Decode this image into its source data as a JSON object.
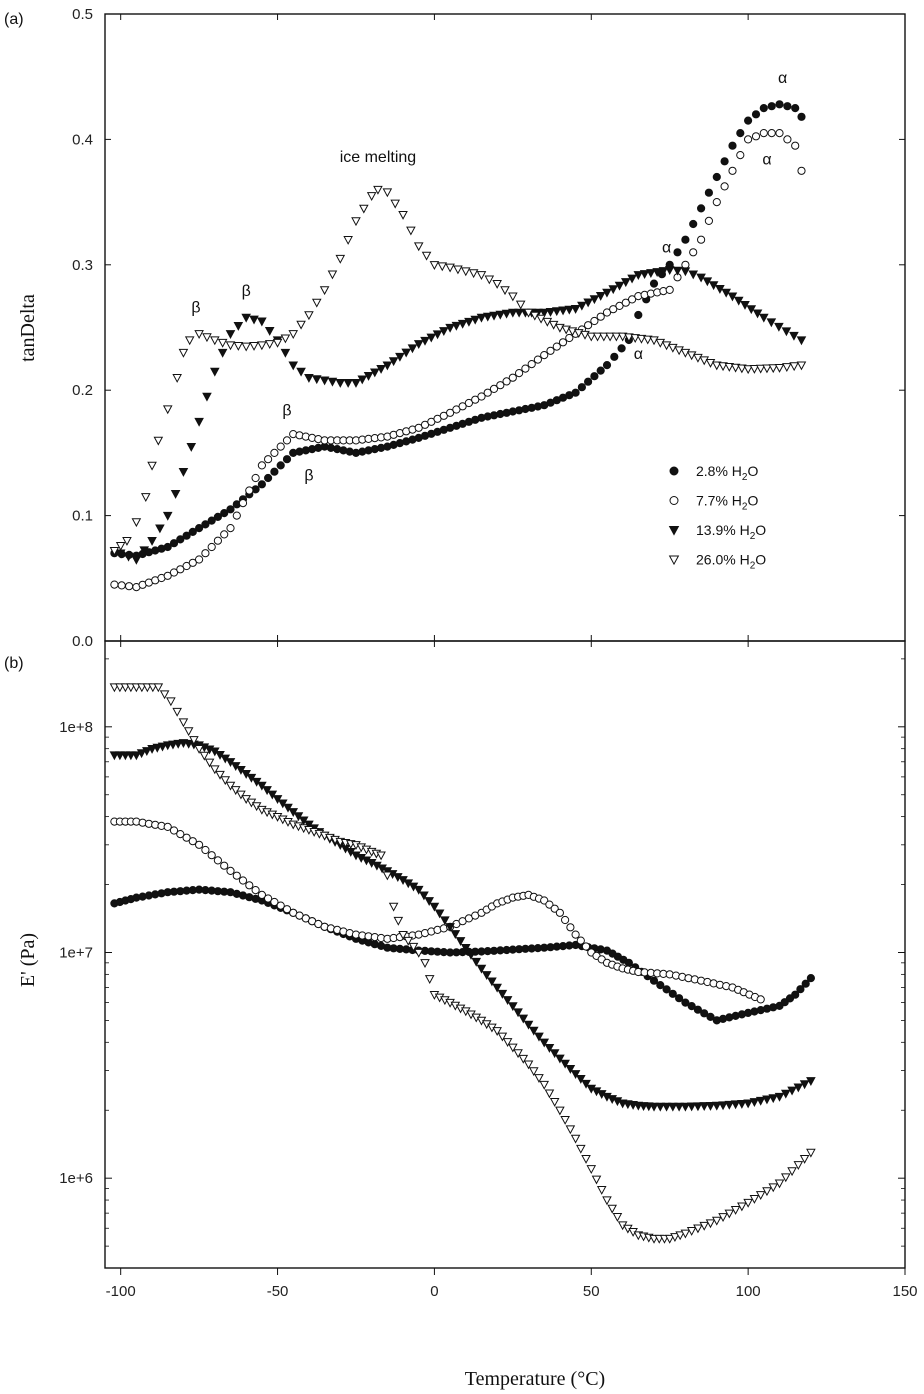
{
  "panel_labels": [
    "(a)",
    "(b)"
  ],
  "legend": [
    {
      "marker": "filled-circle",
      "label": "2.8% H",
      "sub": "2",
      "suffix": "O"
    },
    {
      "marker": "open-circle",
      "label": "7.7% H",
      "sub": "2",
      "suffix": "O"
    },
    {
      "marker": "filled-triangle-down",
      "label": "13.9% H",
      "sub": "2",
      "suffix": "O"
    },
    {
      "marker": "open-triangle-down",
      "label": "26.0% H",
      "sub": "2",
      "suffix": "O"
    }
  ],
  "annotations_a": [
    {
      "text": "ice melting",
      "x": -18,
      "y": 0.382
    },
    {
      "text": "β",
      "x": -76,
      "y": 0.262
    },
    {
      "text": "β",
      "x": -60,
      "y": 0.275
    },
    {
      "text": "β",
      "x": -47,
      "y": 0.18
    },
    {
      "text": "β",
      "x": -40,
      "y": 0.128
    },
    {
      "text": "α",
      "x": 74,
      "y": 0.31
    },
    {
      "text": "α",
      "x": 65,
      "y": 0.225
    },
    {
      "text": "α",
      "x": 111,
      "y": 0.445
    },
    {
      "text": "α",
      "x": 106,
      "y": 0.38
    }
  ],
  "chart_data": [
    {
      "type": "scatter",
      "panel": "(a)",
      "ylabel": "tanDelta",
      "xlim": [
        -105,
        150
      ],
      "ylim": [
        0.0,
        0.5
      ],
      "xticks": [
        -100,
        -50,
        0,
        50,
        100,
        150
      ],
      "yticks": [
        "0.0",
        "0.1",
        "0.2",
        "0.3",
        "0.4",
        "0.5"
      ],
      "series": [
        {
          "name": "2.8% H2O",
          "marker": "filled-circle",
          "x": [
            -102,
            -95,
            -85,
            -75,
            -65,
            -55,
            -45,
            -35,
            -25,
            -15,
            -5,
            5,
            15,
            25,
            35,
            45,
            55,
            62,
            65,
            70,
            75,
            80,
            85,
            90,
            95,
            100,
            105,
            110,
            115,
            117
          ],
          "y": [
            0.07,
            0.068,
            0.075,
            0.09,
            0.105,
            0.125,
            0.15,
            0.155,
            0.15,
            0.155,
            0.162,
            0.17,
            0.178,
            0.183,
            0.188,
            0.198,
            0.22,
            0.24,
            0.26,
            0.285,
            0.3,
            0.32,
            0.345,
            0.37,
            0.395,
            0.415,
            0.425,
            0.428,
            0.425,
            0.418
          ]
        },
        {
          "name": "7.7% H2O",
          "marker": "open-circle",
          "x": [
            -102,
            -95,
            -85,
            -75,
            -65,
            -55,
            -45,
            -35,
            -25,
            -15,
            -5,
            5,
            15,
            25,
            35,
            45,
            55,
            65,
            75,
            80,
            85,
            90,
            95,
            100,
            105,
            110,
            115,
            117
          ],
          "y": [
            0.045,
            0.043,
            0.052,
            0.065,
            0.09,
            0.14,
            0.165,
            0.16,
            0.16,
            0.163,
            0.17,
            0.182,
            0.195,
            0.21,
            0.228,
            0.245,
            0.262,
            0.275,
            0.28,
            0.3,
            0.32,
            0.35,
            0.375,
            0.4,
            0.405,
            0.405,
            0.395,
            0.375
          ]
        },
        {
          "name": "13.9% H2O",
          "marker": "filled-triangle-down",
          "x": [
            -100,
            -95,
            -90,
            -85,
            -80,
            -75,
            -70,
            -65,
            -60,
            -55,
            -50,
            -45,
            -40,
            -35,
            -30,
            -25,
            -15,
            -5,
            5,
            15,
            25,
            35,
            45,
            55,
            65,
            75,
            80,
            85,
            95,
            105,
            117
          ],
          "y": [
            0.07,
            0.065,
            0.08,
            0.1,
            0.135,
            0.175,
            0.215,
            0.245,
            0.258,
            0.255,
            0.24,
            0.22,
            0.21,
            0.208,
            0.206,
            0.206,
            0.22,
            0.237,
            0.25,
            0.258,
            0.262,
            0.262,
            0.265,
            0.278,
            0.292,
            0.296,
            0.295,
            0.29,
            0.275,
            0.258,
            0.24
          ]
        },
        {
          "name": "26.0% H2O",
          "marker": "open-triangle-down",
          "x": [
            -102,
            -98,
            -95,
            -92,
            -90,
            -88,
            -85,
            -82,
            -80,
            -78,
            -75,
            -70,
            -65,
            -60,
            -55,
            -50,
            -45,
            -40,
            -35,
            -30,
            -25,
            -20,
            -18,
            -15,
            -10,
            -5,
            0,
            5,
            10,
            15,
            20,
            25,
            30,
            40,
            50,
            60,
            70,
            80,
            90,
            100,
            110,
            117
          ],
          "y": [
            0.072,
            0.08,
            0.095,
            0.115,
            0.14,
            0.16,
            0.185,
            0.21,
            0.23,
            0.24,
            0.245,
            0.24,
            0.236,
            0.235,
            0.236,
            0.238,
            0.245,
            0.26,
            0.28,
            0.305,
            0.335,
            0.355,
            0.36,
            0.358,
            0.34,
            0.315,
            0.3,
            0.298,
            0.295,
            0.292,
            0.285,
            0.275,
            0.262,
            0.25,
            0.243,
            0.243,
            0.24,
            0.23,
            0.22,
            0.217,
            0.218,
            0.22
          ]
        }
      ]
    },
    {
      "type": "scatter",
      "panel": "(b)",
      "ylabel": "E' (Pa)",
      "xlabel": "Temperature (°C)",
      "yscale": "log",
      "xlim": [
        -105,
        150
      ],
      "ylim": [
        400000,
        240000000
      ],
      "xticks": [
        -100,
        -50,
        0,
        50,
        100,
        150
      ],
      "yticks": [
        {
          "value": 100000000,
          "label": "1e+8"
        },
        {
          "value": 10000000,
          "label": "1e+7"
        },
        {
          "value": 1000000,
          "label": "1e+6"
        }
      ],
      "series": [
        {
          "name": "2.8% H2O",
          "marker": "filled-circle",
          "x": [
            -102,
            -95,
            -85,
            -75,
            -65,
            -55,
            -45,
            -35,
            -25,
            -15,
            -5,
            5,
            15,
            25,
            35,
            45,
            55,
            62,
            70,
            80,
            90,
            100,
            110,
            115,
            120
          ],
          "y": [
            16500000,
            17500000,
            18500000,
            19000000,
            18500000,
            17000000,
            15000000,
            13000000,
            11500000,
            10500000,
            10200000,
            10000000,
            10100000,
            10300000,
            10500000,
            10800000,
            10200000,
            9000000,
            7500000,
            6000000,
            5000000,
            5400000,
            5800000,
            6500000,
            7700000
          ]
        },
        {
          "name": "7.7% H2O",
          "marker": "open-circle",
          "x": [
            -102,
            -95,
            -85,
            -75,
            -65,
            -55,
            -45,
            -35,
            -25,
            -15,
            -5,
            5,
            15,
            20,
            25,
            30,
            35,
            40,
            45,
            50,
            55,
            60,
            65,
            75,
            85,
            95,
            104
          ],
          "y": [
            38000000,
            38000000,
            36000000,
            30000000,
            23000000,
            18000000,
            15000000,
            13000000,
            12000000,
            11500000,
            12000000,
            13000000,
            15000000,
            16500000,
            17500000,
            18000000,
            17000000,
            15000000,
            12000000,
            10000000,
            9000000,
            8500000,
            8200000,
            8000000,
            7500000,
            7000000,
            6200000
          ]
        },
        {
          "name": "13.9% H2O",
          "marker": "filled-triangle-down",
          "x": [
            -102,
            -95,
            -90,
            -85,
            -80,
            -75,
            -70,
            -65,
            -60,
            -55,
            -50,
            -45,
            -40,
            -35,
            -30,
            -25,
            -20,
            -15,
            -10,
            -5,
            0,
            5,
            10,
            15,
            20,
            25,
            30,
            35,
            40,
            45,
            50,
            55,
            60,
            65,
            70,
            80,
            90,
            100,
            110,
            120
          ],
          "y": [
            75000000,
            75000000,
            80000000,
            83000000,
            85000000,
            83000000,
            78000000,
            70000000,
            62000000,
            55000000,
            48000000,
            42000000,
            37000000,
            33000000,
            30000000,
            27000000,
            25000000,
            23000000,
            21000000,
            19000000,
            16000000,
            13000000,
            10500000,
            8500000,
            7000000,
            5800000,
            4800000,
            4000000,
            3400000,
            2900000,
            2500000,
            2300000,
            2150000,
            2100000,
            2080000,
            2080000,
            2100000,
            2150000,
            2300000,
            2700000
          ]
        },
        {
          "name": "26.0% H2O",
          "marker": "open-triangle-down",
          "x": [
            -102,
            -95,
            -88,
            -84,
            -80,
            -75,
            -70,
            -65,
            -60,
            -55,
            -50,
            -45,
            -40,
            -35,
            -30,
            -25,
            -20,
            -17,
            -15,
            -13,
            -10,
            -5,
            -3,
            0,
            5,
            10,
            15,
            20,
            25,
            30,
            35,
            40,
            45,
            50,
            55,
            60,
            65,
            70,
            75,
            80,
            90,
            100,
            110,
            120
          ],
          "y": [
            150000000,
            150000000,
            150000000,
            130000000,
            105000000,
            80000000,
            65000000,
            55000000,
            48000000,
            43000000,
            40000000,
            37000000,
            35000000,
            33000000,
            31000000,
            30000000,
            28000000,
            27000000,
            22000000,
            16000000,
            12000000,
            10000000,
            9000000,
            6500000,
            6000000,
            5500000,
            5000000,
            4500000,
            3800000,
            3200000,
            2600000,
            2000000,
            1500000,
            1100000,
            800000,
            620000,
            560000,
            540000,
            540000,
            570000,
            650000,
            780000,
            950000,
            1300000
          ]
        }
      ]
    }
  ]
}
